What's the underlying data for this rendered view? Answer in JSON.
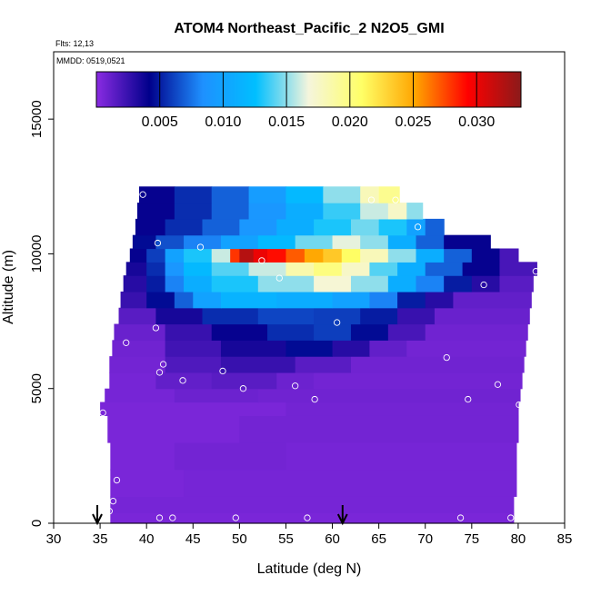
{
  "chart_data": {
    "type": "heatmap",
    "title": "ATOM4 Northeast_Pacific_2 N2O5_GMI",
    "flights_label": "Flts: 12,13",
    "dates_label": "MMDD: 0519,0521",
    "xlabel": "Latitude (deg N)",
    "ylabel": "Altitude (m)",
    "xlim": [
      30,
      85
    ],
    "ylim": [
      0,
      17500
    ],
    "x_ticks": [
      30,
      35,
      40,
      45,
      50,
      55,
      60,
      65,
      70,
      75,
      80,
      85
    ],
    "y_ticks": [
      0,
      5000,
      10000,
      15000
    ],
    "colorbar": {
      "min": 0.0,
      "max": 0.0335,
      "ticks": [
        "0.005",
        "0.010",
        "0.015",
        "0.020",
        "0.025",
        "0.030"
      ],
      "tick_values": [
        0.005,
        0.01,
        0.015,
        0.02,
        0.025,
        0.03
      ],
      "colors": [
        "#8a2be2",
        "#00008b",
        "#1e90ff",
        "#00bfff",
        "#f5f5dc",
        "#ffff66",
        "#ffa500",
        "#ff0000",
        "#8b1a1a"
      ]
    },
    "arrows_lat": [
      34.7,
      61.1
    ],
    "bands": [
      {
        "alt0": 0,
        "alt1": 400,
        "lat0": 36.1,
        "lat1": 79.5,
        "segments": [
          {
            "lat": 36.1,
            "value": 0.0005
          }
        ]
      },
      {
        "alt0": 400,
        "alt1": 1000,
        "lat0": 36.1,
        "lat1": 79.5,
        "segments": [
          {
            "lat": 36.1,
            "value": 0.0006
          }
        ]
      },
      {
        "alt0": 1000,
        "alt1": 2000,
        "lat0": 36.1,
        "lat1": 79.8,
        "segments": [
          {
            "lat": 36.1,
            "value": 0.0005
          },
          {
            "lat": 44.0,
            "value": 0.0006
          }
        ]
      },
      {
        "alt0": 2000,
        "alt1": 3000,
        "lat0": 36.1,
        "lat1": 79.8,
        "segments": [
          {
            "lat": 36.1,
            "value": 0.0005
          },
          {
            "lat": 43.0,
            "value": 0.0007
          },
          {
            "lat": 55.0,
            "value": 0.0006
          }
        ]
      },
      {
        "alt0": 3000,
        "alt1": 4000,
        "lat0": 35.8,
        "lat1": 80.0,
        "segments": [
          {
            "lat": 35.8,
            "value": 0.0005
          },
          {
            "lat": 50.0,
            "value": 0.0007
          }
        ]
      },
      {
        "alt0": 4000,
        "alt1": 4500,
        "lat0": 35.0,
        "lat1": 80.0,
        "segments": [
          {
            "lat": 35.0,
            "value": 0.0005
          },
          {
            "lat": 55.0,
            "value": 0.0007
          }
        ]
      },
      {
        "alt0": 4500,
        "alt1": 5000,
        "lat0": 35.5,
        "lat1": 80.2,
        "segments": [
          {
            "lat": 35.5,
            "value": 0.0006
          },
          {
            "lat": 43.0,
            "value": 0.0009
          },
          {
            "lat": 52.0,
            "value": 0.0008
          }
        ]
      },
      {
        "alt0": 5000,
        "alt1": 5600,
        "lat0": 36.0,
        "lat1": 80.4,
        "segments": [
          {
            "lat": 36.0,
            "value": 0.0006
          },
          {
            "lat": 41.0,
            "value": 0.0012
          },
          {
            "lat": 47.0,
            "value": 0.0015
          },
          {
            "lat": 54.0,
            "value": 0.0009
          },
          {
            "lat": 58.0,
            "value": 0.0007
          }
        ]
      },
      {
        "alt0": 5600,
        "alt1": 6200,
        "lat0": 36.0,
        "lat1": 80.6,
        "segments": [
          {
            "lat": 36.0,
            "value": 0.0007
          },
          {
            "lat": 42.0,
            "value": 0.0018
          },
          {
            "lat": 48.0,
            "value": 0.0025
          },
          {
            "lat": 56.0,
            "value": 0.0015
          },
          {
            "lat": 62.0,
            "value": 0.0008
          }
        ]
      },
      {
        "alt0": 6200,
        "alt1": 6800,
        "lat0": 36.3,
        "lat1": 80.8,
        "segments": [
          {
            "lat": 36.3,
            "value": 0.0008
          },
          {
            "lat": 42.0,
            "value": 0.0022
          },
          {
            "lat": 48.0,
            "value": 0.0035
          },
          {
            "lat": 55.0,
            "value": 0.0045
          },
          {
            "lat": 60.0,
            "value": 0.003
          },
          {
            "lat": 64.0,
            "value": 0.0012
          },
          {
            "lat": 68.0,
            "value": 0.0007
          }
        ]
      },
      {
        "alt0": 6800,
        "alt1": 7400,
        "lat0": 36.5,
        "lat1": 81.0,
        "segments": [
          {
            "lat": 36.5,
            "value": 0.001
          },
          {
            "lat": 42.0,
            "value": 0.0025
          },
          {
            "lat": 47.0,
            "value": 0.004
          },
          {
            "lat": 53.0,
            "value": 0.0055
          },
          {
            "lat": 58.0,
            "value": 0.006
          },
          {
            "lat": 62.0,
            "value": 0.0045
          },
          {
            "lat": 66.0,
            "value": 0.002
          },
          {
            "lat": 70.0,
            "value": 0.0008
          }
        ]
      },
      {
        "alt0": 7400,
        "alt1": 8000,
        "lat0": 37.0,
        "lat1": 81.2,
        "segments": [
          {
            "lat": 37.0,
            "value": 0.0015
          },
          {
            "lat": 41.0,
            "value": 0.0035
          },
          {
            "lat": 46.0,
            "value": 0.0055
          },
          {
            "lat": 52.0,
            "value": 0.0062
          },
          {
            "lat": 58.0,
            "value": 0.006
          },
          {
            "lat": 63.0,
            "value": 0.005
          },
          {
            "lat": 67.0,
            "value": 0.0025
          },
          {
            "lat": 71.0,
            "value": 0.001
          }
        ]
      },
      {
        "alt0": 8000,
        "alt1": 8600,
        "lat0": 37.2,
        "lat1": 81.4,
        "segments": [
          {
            "lat": 37.2,
            "value": 0.0025
          },
          {
            "lat": 40.0,
            "value": 0.0045
          },
          {
            "lat": 43.0,
            "value": 0.007
          },
          {
            "lat": 45.0,
            "value": 0.01
          },
          {
            "lat": 48.0,
            "value": 0.0115
          },
          {
            "lat": 54.0,
            "value": 0.011
          },
          {
            "lat": 60.0,
            "value": 0.01
          },
          {
            "lat": 64.0,
            "value": 0.008
          },
          {
            "lat": 67.0,
            "value": 0.005
          },
          {
            "lat": 70.0,
            "value": 0.003
          },
          {
            "lat": 73.0,
            "value": 0.0012
          }
        ]
      },
      {
        "alt0": 8600,
        "alt1": 9200,
        "lat0": 37.5,
        "lat1": 81.6,
        "segments": [
          {
            "lat": 37.5,
            "value": 0.003
          },
          {
            "lat": 40.0,
            "value": 0.005
          },
          {
            "lat": 42.0,
            "value": 0.008
          },
          {
            "lat": 44.0,
            "value": 0.011
          },
          {
            "lat": 47.0,
            "value": 0.013
          },
          {
            "lat": 52.0,
            "value": 0.015
          },
          {
            "lat": 58.0,
            "value": 0.017
          },
          {
            "lat": 62.0,
            "value": 0.015
          },
          {
            "lat": 66.0,
            "value": 0.011
          },
          {
            "lat": 69.0,
            "value": 0.008
          },
          {
            "lat": 72.0,
            "value": 0.005
          },
          {
            "lat": 75.0,
            "value": 0.003
          },
          {
            "lat": 78.0,
            "value": 0.0015
          }
        ]
      },
      {
        "alt0": 9200,
        "alt1": 9700,
        "lat0": 37.8,
        "lat1": 82.0,
        "segments": [
          {
            "lat": 37.8,
            "value": 0.0035
          },
          {
            "lat": 40.0,
            "value": 0.0055
          },
          {
            "lat": 42.0,
            "value": 0.009
          },
          {
            "lat": 44.0,
            "value": 0.012
          },
          {
            "lat": 47.0,
            "value": 0.014
          },
          {
            "lat": 51.0,
            "value": 0.016
          },
          {
            "lat": 55.0,
            "value": 0.0185
          },
          {
            "lat": 58.0,
            "value": 0.02
          },
          {
            "lat": 61.0,
            "value": 0.0175
          },
          {
            "lat": 64.0,
            "value": 0.014
          },
          {
            "lat": 67.0,
            "value": 0.011
          },
          {
            "lat": 70.0,
            "value": 0.007
          },
          {
            "lat": 74.0,
            "value": 0.004
          },
          {
            "lat": 78.0,
            "value": 0.002
          }
        ]
      },
      {
        "alt0": 9700,
        "alt1": 10200,
        "lat0": 38.2,
        "lat1": 80.0,
        "segments": [
          {
            "lat": 38.2,
            "value": 0.004
          },
          {
            "lat": 40.0,
            "value": 0.006
          },
          {
            "lat": 42.0,
            "value": 0.01
          },
          {
            "lat": 44.0,
            "value": 0.013
          },
          {
            "lat": 47.0,
            "value": 0.016
          },
          {
            "lat": 49.0,
            "value": 0.028
          },
          {
            "lat": 50.0,
            "value": 0.032
          },
          {
            "lat": 51.5,
            "value": 0.03
          },
          {
            "lat": 53.0,
            "value": 0.029
          },
          {
            "lat": 55.0,
            "value": 0.027
          },
          {
            "lat": 57.0,
            "value": 0.025
          },
          {
            "lat": 59.0,
            "value": 0.0235
          },
          {
            "lat": 61.0,
            "value": 0.021
          },
          {
            "lat": 63.0,
            "value": 0.018
          },
          {
            "lat": 66.0,
            "value": 0.015
          },
          {
            "lat": 69.0,
            "value": 0.011
          },
          {
            "lat": 72.0,
            "value": 0.007
          },
          {
            "lat": 75.0,
            "value": 0.004
          },
          {
            "lat": 78.0,
            "value": 0.002
          }
        ]
      },
      {
        "alt0": 10200,
        "alt1": 10700,
        "lat0": 38.5,
        "lat1": 77.0,
        "segments": [
          {
            "lat": 38.5,
            "value": 0.0045
          },
          {
            "lat": 41.0,
            "value": 0.0065
          },
          {
            "lat": 44.0,
            "value": 0.008
          },
          {
            "lat": 48.0,
            "value": 0.01
          },
          {
            "lat": 52.0,
            "value": 0.012
          },
          {
            "lat": 56.0,
            "value": 0.0145
          },
          {
            "lat": 60.0,
            "value": 0.0165
          },
          {
            "lat": 63.0,
            "value": 0.015
          },
          {
            "lat": 66.0,
            "value": 0.011
          },
          {
            "lat": 69.0,
            "value": 0.007
          },
          {
            "lat": 72.0,
            "value": 0.004
          }
        ]
      },
      {
        "alt0": 10700,
        "alt1": 11300,
        "lat0": 38.8,
        "lat1": 72.0,
        "segments": [
          {
            "lat": 38.8,
            "value": 0.004
          },
          {
            "lat": 42.0,
            "value": 0.0055
          },
          {
            "lat": 46.0,
            "value": 0.007
          },
          {
            "lat": 50.0,
            "value": 0.009
          },
          {
            "lat": 54.0,
            "value": 0.011
          },
          {
            "lat": 58.0,
            "value": 0.013
          },
          {
            "lat": 62.0,
            "value": 0.0145
          },
          {
            "lat": 65.0,
            "value": 0.013
          },
          {
            "lat": 68.0,
            "value": 0.01
          },
          {
            "lat": 70.0,
            "value": 0.007
          }
        ]
      },
      {
        "alt0": 11300,
        "alt1": 11900,
        "lat0": 39.0,
        "lat1": 69.7,
        "segments": [
          {
            "lat": 39.0,
            "value": 0.004
          },
          {
            "lat": 43.0,
            "value": 0.0055
          },
          {
            "lat": 47.0,
            "value": 0.007
          },
          {
            "lat": 51.0,
            "value": 0.009
          },
          {
            "lat": 55.0,
            "value": 0.011
          },
          {
            "lat": 59.0,
            "value": 0.0135
          },
          {
            "lat": 63.0,
            "value": 0.016
          },
          {
            "lat": 66.0,
            "value": 0.0175
          },
          {
            "lat": 68.0,
            "value": 0.015
          }
        ]
      },
      {
        "alt0": 11900,
        "alt1": 12500,
        "lat0": 39.2,
        "lat1": 67.2,
        "segments": [
          {
            "lat": 39.2,
            "value": 0.004
          },
          {
            "lat": 43.0,
            "value": 0.0055
          },
          {
            "lat": 47.0,
            "value": 0.007
          },
          {
            "lat": 51.0,
            "value": 0.0095
          },
          {
            "lat": 55.0,
            "value": 0.012
          },
          {
            "lat": 59.0,
            "value": 0.015
          },
          {
            "lat": 63.0,
            "value": 0.018
          },
          {
            "lat": 65.0,
            "value": 0.0195
          }
        ]
      }
    ],
    "points": [
      [
        36.0,
        450
      ],
      [
        36.4,
        820
      ],
      [
        36.8,
        1600
      ],
      [
        35.3,
        4100
      ],
      [
        41.4,
        200
      ],
      [
        42.8,
        200
      ],
      [
        49.6,
        200
      ],
      [
        57.3,
        200
      ],
      [
        73.8,
        200
      ],
      [
        79.2,
        200
      ],
      [
        37.8,
        6700
      ],
      [
        41.0,
        7250
      ],
      [
        41.4,
        5600
      ],
      [
        41.8,
        5900
      ],
      [
        43.9,
        5300
      ],
      [
        48.2,
        5650
      ],
      [
        50.4,
        5000
      ],
      [
        56.0,
        5100
      ],
      [
        58.1,
        4600
      ],
      [
        74.6,
        4600
      ],
      [
        77.8,
        5150
      ],
      [
        80.1,
        4400
      ],
      [
        60.5,
        7450
      ],
      [
        72.3,
        6150
      ],
      [
        76.3,
        8850
      ],
      [
        81.9,
        9350
      ],
      [
        54.3,
        9100
      ],
      [
        52.4,
        9750
      ],
      [
        45.8,
        10250
      ],
      [
        41.2,
        10400
      ],
      [
        69.2,
        11000
      ],
      [
        64.2,
        12000
      ],
      [
        66.8,
        12000
      ],
      [
        39.6,
        12200
      ]
    ]
  }
}
